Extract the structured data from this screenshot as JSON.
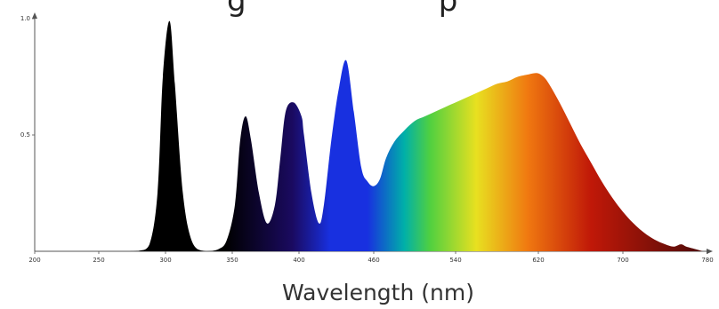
{
  "chart_data": {
    "type": "area",
    "title": "g                    p",
    "xlabel": "Wavelength (nm)",
    "ylabel": "",
    "xlim": [
      200,
      780
    ],
    "ylim": [
      0,
      1.0
    ],
    "x_ticks": [
      {
        "value": 200,
        "label": "200"
      },
      {
        "value": 250,
        "label": "250"
      },
      {
        "value": 300,
        "label": "300"
      },
      {
        "value": 350,
        "label": "350"
      },
      {
        "value": 400,
        "label": "400"
      },
      {
        "value": 460,
        "label": "460"
      },
      {
        "value": 540,
        "label": "540"
      },
      {
        "value": 620,
        "label": "620"
      },
      {
        "value": 700,
        "label": "700"
      },
      {
        "value": 780,
        "label": "780"
      }
    ],
    "y_ticks": [
      {
        "value": 0.5,
        "label": "0.5"
      },
      {
        "value": 1.0,
        "label": "1.0"
      }
    ],
    "grid": false,
    "legend": "none",
    "series": [
      {
        "x": [
          270,
          280,
          288,
          294,
          298,
          303,
          307,
          313,
          320,
          330,
          340,
          346,
          352,
          356,
          360,
          364,
          370,
          376,
          382,
          386,
          390,
          396,
          402,
          404,
          410,
          416,
          420,
          426,
          432,
          438,
          444,
          450,
          455,
          460,
          466,
          472,
          480,
          490,
          500,
          510,
          520,
          530,
          540,
          550,
          560,
          570,
          580,
          590,
          600,
          610,
          615,
          620,
          625,
          630,
          640,
          650,
          660,
          670,
          680,
          690,
          700,
          710,
          720,
          730,
          740,
          748,
          755,
          760,
          768,
          772,
          776
        ],
        "y": [
          0,
          0.002,
          0.03,
          0.25,
          0.75,
          0.99,
          0.72,
          0.25,
          0.04,
          0.0,
          0.01,
          0.05,
          0.2,
          0.48,
          0.58,
          0.48,
          0.25,
          0.12,
          0.2,
          0.4,
          0.6,
          0.64,
          0.58,
          0.5,
          0.25,
          0.12,
          0.2,
          0.48,
          0.7,
          0.82,
          0.6,
          0.36,
          0.3,
          0.28,
          0.31,
          0.4,
          0.47,
          0.52,
          0.56,
          0.58,
          0.6,
          0.62,
          0.64,
          0.66,
          0.68,
          0.7,
          0.72,
          0.73,
          0.75,
          0.76,
          0.765,
          0.765,
          0.75,
          0.72,
          0.64,
          0.55,
          0.46,
          0.38,
          0.3,
          0.23,
          0.17,
          0.12,
          0.08,
          0.05,
          0.03,
          0.02,
          0.03,
          0.02,
          0.01,
          0.005,
          0
        ]
      }
    ],
    "colors": {
      "uv": "#000000",
      "violet": "#1a0a60",
      "blue": "#1830e0",
      "cyan": "#00b0a8",
      "green": "#50d040",
      "yellow": "#e8e020",
      "orange": "#f07810",
      "red": "#c01808",
      "dark_red": "#4a0a08"
    }
  }
}
